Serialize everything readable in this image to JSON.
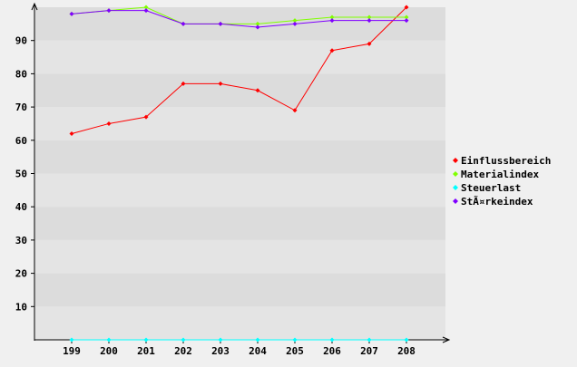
{
  "chart_data": {
    "type": "line",
    "categories": [
      "199",
      "200",
      "201",
      "202",
      "203",
      "204",
      "205",
      "206",
      "207",
      "208"
    ],
    "y_ticks": [
      "10",
      "20",
      "30",
      "40",
      "50",
      "60",
      "70",
      "80",
      "90"
    ],
    "ylim": [
      0,
      100
    ],
    "grid": "horizontal bands",
    "legend_position": "right",
    "series": [
      {
        "name": "Einflussbereich",
        "color": "#ff0000",
        "values": [
          62,
          65,
          67,
          77,
          77,
          75,
          69,
          87,
          89,
          100
        ]
      },
      {
        "name": "Materialindex",
        "color": "#80ff00",
        "values": [
          98,
          99,
          100,
          95,
          95,
          95,
          96,
          97,
          97,
          97
        ]
      },
      {
        "name": "Steuerlast",
        "color": "#00ffff",
        "values": [
          0,
          0,
          0,
          0,
          0,
          0,
          0,
          0,
          0,
          0
        ]
      },
      {
        "name": "StÃ¤rkeindex",
        "color": "#8000ff",
        "values": [
          98,
          99,
          99,
          95,
          95,
          94,
          95,
          96,
          96,
          96
        ]
      }
    ]
  }
}
